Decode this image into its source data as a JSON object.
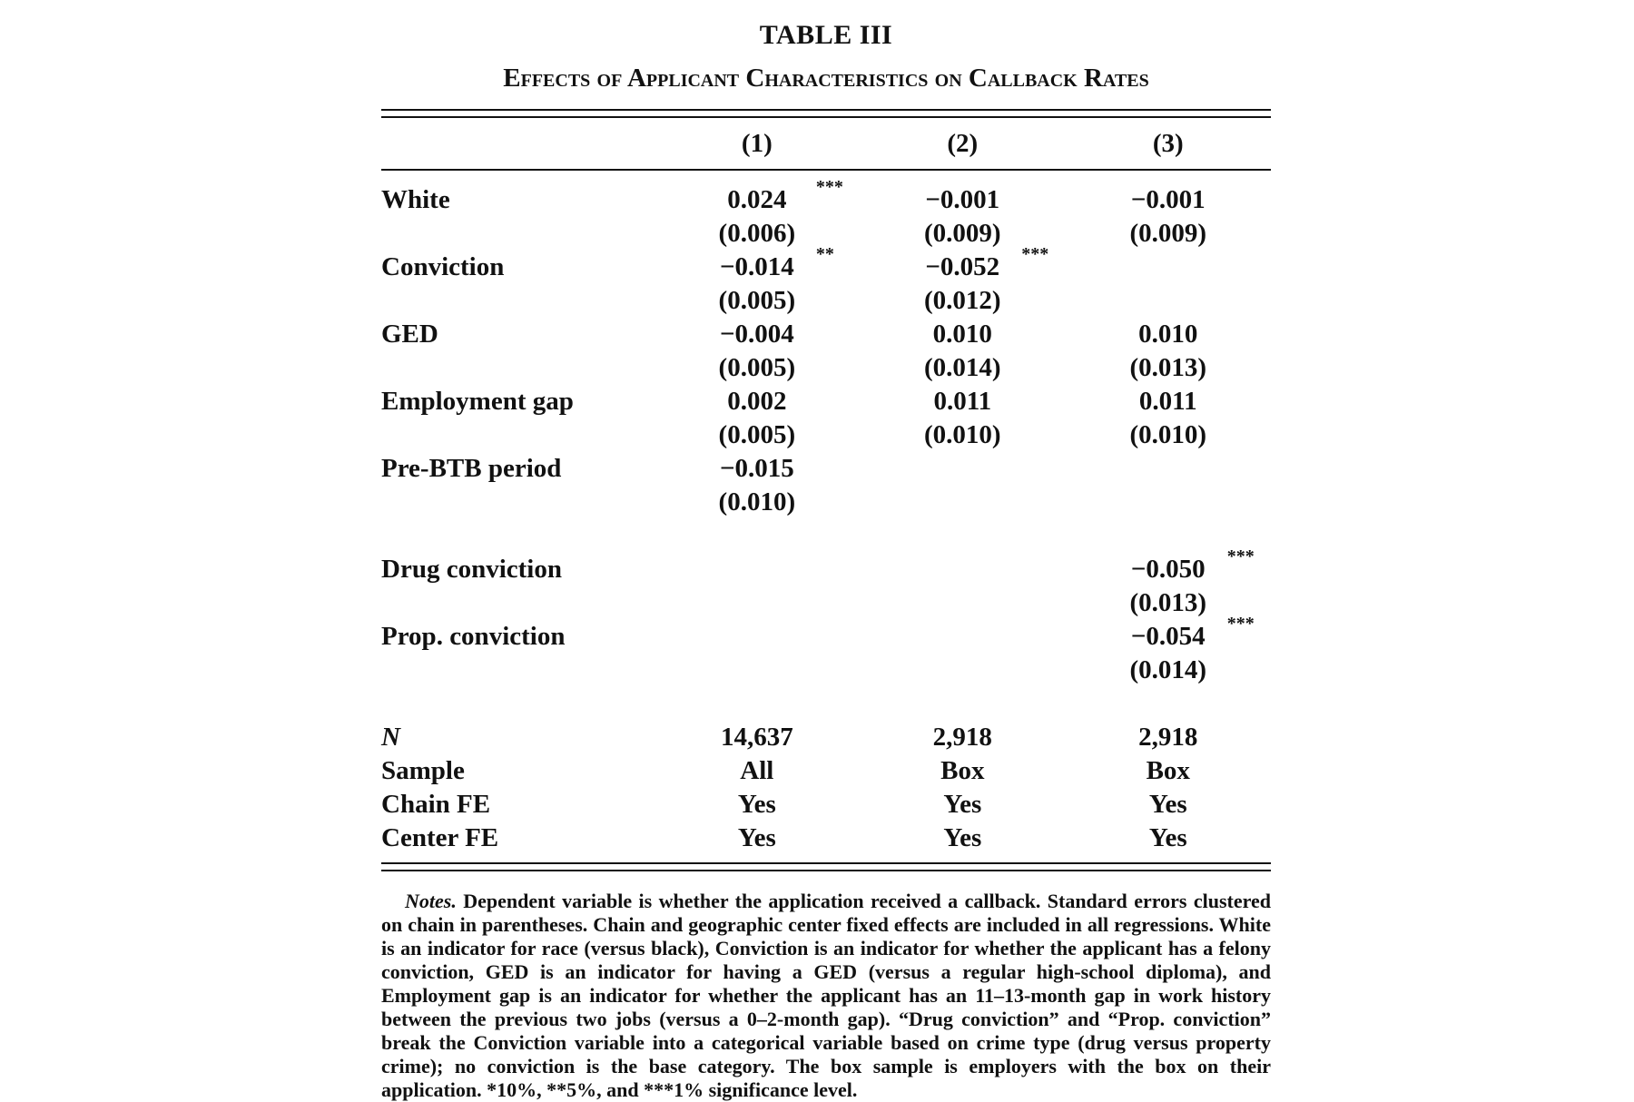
{
  "table": {
    "number": "TABLE III",
    "title": "Effects of Applicant Characteristics on Callback Rates",
    "columns": [
      "(1)",
      "(2)",
      "(3)"
    ],
    "rows": [
      {
        "label": "White",
        "coef": [
          "0.024",
          "−0.001",
          "−0.001"
        ],
        "stars": [
          "***",
          "",
          ""
        ],
        "se": [
          "(0.006)",
          "(0.009)",
          "(0.009)"
        ]
      },
      {
        "label": "Conviction",
        "coef": [
          "−0.014",
          "−0.052",
          ""
        ],
        "stars": [
          "**",
          "***",
          ""
        ],
        "se": [
          "(0.005)",
          "(0.012)",
          ""
        ]
      },
      {
        "label": "GED",
        "coef": [
          "−0.004",
          "0.010",
          "0.010"
        ],
        "stars": [
          "",
          "",
          ""
        ],
        "se": [
          "(0.005)",
          "(0.014)",
          "(0.013)"
        ]
      },
      {
        "label": "Employment gap",
        "coef": [
          "0.002",
          "0.011",
          "0.011"
        ],
        "stars": [
          "",
          "",
          ""
        ],
        "se": [
          "(0.005)",
          "(0.010)",
          "(0.010)"
        ]
      },
      {
        "label": "Pre-BTB period",
        "coef": [
          "−0.015",
          "",
          ""
        ],
        "stars": [
          "",
          "",
          ""
        ],
        "se": [
          "(0.010)",
          "",
          ""
        ]
      },
      {
        "label": "Drug conviction",
        "coef": [
          "",
          "",
          "−0.050"
        ],
        "stars": [
          "",
          "",
          "***"
        ],
        "se": [
          "",
          "",
          "(0.013)"
        ]
      },
      {
        "label": "Prop. conviction",
        "coef": [
          "",
          "",
          "−0.054"
        ],
        "stars": [
          "",
          "",
          "***"
        ],
        "se": [
          "",
          "",
          "(0.014)"
        ]
      }
    ],
    "footer": [
      {
        "label": "N",
        "values": [
          "14,637",
          "2,918",
          "2,918"
        ]
      },
      {
        "label": "Sample",
        "values": [
          "All",
          "Box",
          "Box"
        ]
      },
      {
        "label": "Chain FE",
        "values": [
          "Yes",
          "Yes",
          "Yes"
        ]
      },
      {
        "label": "Center FE",
        "values": [
          "Yes",
          "Yes",
          "Yes"
        ]
      }
    ],
    "notes_lead": "Notes.",
    "notes_text": "Dependent variable is whether the application received a callback. Standard errors clustered on chain in parentheses. Chain and geographic center fixed effects are included in all regressions. White is an indicator for race (versus black), Conviction is an indicator for whether the applicant has a felony conviction, GED is an indicator for having a GED (versus a regular high-school diploma), and Employment gap is an indicator for whether the applicant has an 11–13-month gap in work history between the previous two jobs (versus a 0–2-month gap). “Drug conviction” and “Prop. conviction” break the Conviction variable into a categorical variable based on crime type (drug versus property crime); no conviction is the base category. The box sample is employers with the box on their application. *10%, **5%, and ***1% significance level."
  }
}
